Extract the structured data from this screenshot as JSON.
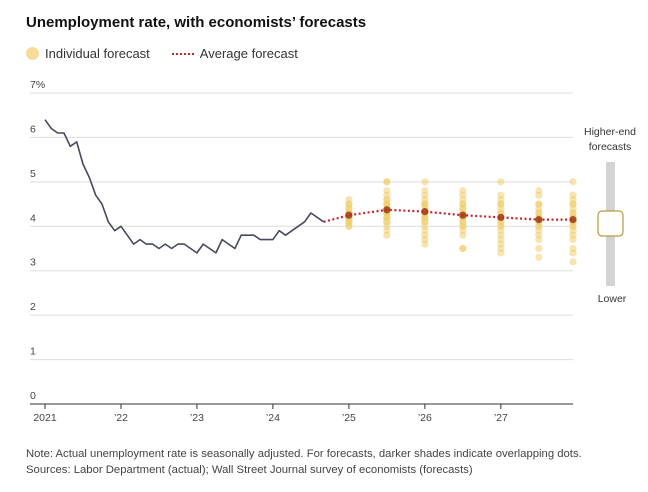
{
  "title": "Unemployment rate, with economists’ forecasts",
  "legend": {
    "individual": "Individual forecast",
    "average": "Average forecast"
  },
  "slider": {
    "top_label": "Higher-end forecasts",
    "bottom_label": "Lower"
  },
  "notes": {
    "note": "Note: Actual unemployment rate is seasonally adjusted. For forecasts, darker shades indicate overlapping dots.",
    "sources": "Sources: Labor Department (actual); Wall Street Journal survey of economists (forecasts)"
  },
  "colors": {
    "actual_line": "#474a5e",
    "average_line": "#c8262e",
    "forecast_dot": "#f0cd6e",
    "forecast_dot_dark": "#8b2a00"
  },
  "chart_data": {
    "type": "line",
    "title": "Unemployment rate, with economists’ forecasts",
    "ylim": [
      0,
      7
    ],
    "y_ticks": [
      0,
      1,
      2,
      3,
      4,
      5,
      6,
      7
    ],
    "y_tick_labels": [
      "0",
      "1",
      "2",
      "3",
      "4",
      "5",
      "6",
      "7%"
    ],
    "x_range": [
      2021.0,
      2027.95
    ],
    "x_ticks": [
      2021,
      2022,
      2023,
      2024,
      2025,
      2026,
      2027
    ],
    "x_tick_labels": [
      "2021",
      "’22",
      "’23",
      "’24",
      "’25",
      "’26",
      "’27"
    ],
    "actual": {
      "name": "Actual unemployment rate",
      "x": [
        2021.0,
        2021.083,
        2021.167,
        2021.25,
        2021.333,
        2021.417,
        2021.5,
        2021.583,
        2021.667,
        2021.75,
        2021.833,
        2021.917,
        2022.0,
        2022.083,
        2022.167,
        2022.25,
        2022.333,
        2022.417,
        2022.5,
        2022.583,
        2022.667,
        2022.75,
        2022.833,
        2022.917,
        2023.0,
        2023.083,
        2023.167,
        2023.25,
        2023.333,
        2023.417,
        2023.5,
        2023.583,
        2023.667,
        2023.75,
        2023.833,
        2023.917,
        2024.0,
        2024.083,
        2024.167,
        2024.25,
        2024.333,
        2024.417,
        2024.5,
        2024.583,
        2024.667
      ],
      "values": [
        6.4,
        6.2,
        6.1,
        6.1,
        5.8,
        5.9,
        5.4,
        5.1,
        4.7,
        4.5,
        4.1,
        3.9,
        4.0,
        3.8,
        3.6,
        3.7,
        3.6,
        3.6,
        3.5,
        3.6,
        3.5,
        3.6,
        3.6,
        3.5,
        3.4,
        3.6,
        3.5,
        3.4,
        3.7,
        3.6,
        3.5,
        3.8,
        3.8,
        3.8,
        3.7,
        3.7,
        3.7,
        3.9,
        3.8,
        3.9,
        4.0,
        4.1,
        4.3,
        4.2,
        4.1
      ]
    },
    "average_forecast": {
      "name": "Average forecast",
      "x": [
        2024.667,
        2025.0,
        2025.5,
        2026.0,
        2026.5,
        2027.0,
        2027.5,
        2027.95
      ],
      "values": [
        4.1,
        4.25,
        4.37,
        4.33,
        4.25,
        4.2,
        4.15,
        4.15
      ]
    },
    "individual_forecasts": [
      {
        "x": 2025.0,
        "values": [
          4.6,
          4.5,
          4.5,
          4.4,
          4.4,
          4.3,
          4.3,
          4.3,
          4.3,
          4.2,
          4.2,
          4.2,
          4.2,
          4.2,
          4.1,
          4.1,
          4.1,
          4.0,
          4.0
        ]
      },
      {
        "x": 2025.5,
        "values": [
          5.0,
          5.0,
          4.8,
          4.7,
          4.6,
          4.6,
          4.5,
          4.5,
          4.5,
          4.4,
          4.4,
          4.4,
          4.3,
          4.3,
          4.3,
          4.2,
          4.2,
          4.2,
          4.1,
          4.1,
          4.0,
          3.9,
          3.8
        ]
      },
      {
        "x": 2026.0,
        "values": [
          5.0,
          4.8,
          4.7,
          4.6,
          4.5,
          4.5,
          4.5,
          4.4,
          4.4,
          4.3,
          4.3,
          4.3,
          4.2,
          4.2,
          4.2,
          4.1,
          4.1,
          4.0,
          3.9,
          3.8,
          3.7,
          3.6
        ]
      },
      {
        "x": 2026.5,
        "values": [
          4.8,
          4.7,
          4.6,
          4.5,
          4.5,
          4.4,
          4.4,
          4.3,
          4.3,
          4.2,
          4.2,
          4.2,
          4.1,
          4.1,
          4.0,
          4.0,
          3.9,
          3.8,
          3.5,
          3.5
        ]
      },
      {
        "x": 2027.0,
        "values": [
          5.0,
          4.7,
          4.6,
          4.5,
          4.5,
          4.4,
          4.3,
          4.3,
          4.2,
          4.2,
          4.2,
          4.1,
          4.1,
          4.0,
          4.0,
          3.9,
          3.8,
          3.7,
          3.6,
          3.5,
          3.4
        ]
      },
      {
        "x": 2027.5,
        "values": [
          4.8,
          4.7,
          4.5,
          4.5,
          4.4,
          4.3,
          4.3,
          4.2,
          4.2,
          4.1,
          4.1,
          4.0,
          4.0,
          3.9,
          3.8,
          3.7,
          3.5,
          3.3
        ]
      },
      {
        "x": 2027.95,
        "values": [
          5.0,
          4.7,
          4.6,
          4.5,
          4.5,
          4.4,
          4.3,
          4.3,
          4.2,
          4.2,
          4.1,
          4.1,
          4.0,
          4.0,
          3.9,
          3.8,
          3.7,
          3.5,
          3.4,
          3.2
        ]
      }
    ]
  }
}
